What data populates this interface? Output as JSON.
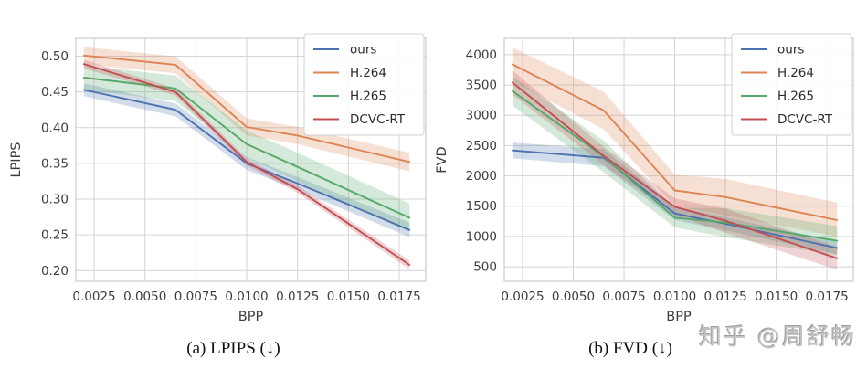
{
  "watermark": {
    "text": "知乎 @周舒畅",
    "color": "#c3c3c3"
  },
  "palette": {
    "ours": "#4c72b0",
    "h264": "#dd8452",
    "h265": "#55a868",
    "dcvc_rt": "#c44e52"
  },
  "chart_data": [
    {
      "type": "line",
      "caption": "(a) LPIPS (↓)",
      "title": "",
      "xlabel": "BPP",
      "ylabel": "LPIPS",
      "grid": true,
      "legend_position": "upper right",
      "x": [
        0.002,
        0.0065,
        0.01,
        0.0125,
        0.018
      ],
      "xlim": [
        0.0016,
        0.0188
      ],
      "ylim": [
        0.185,
        0.525
      ],
      "xticks": [
        0.0025,
        0.005,
        0.0075,
        0.01,
        0.0125,
        0.015,
        0.0175
      ],
      "xtick_labels": [
        "0.0025",
        "0.0050",
        "0.0075",
        "0.0100",
        "0.0125",
        "0.0150",
        "0.0175"
      ],
      "yticks": [
        0.2,
        0.25,
        0.3,
        0.35,
        0.4,
        0.45,
        0.5
      ],
      "ytick_labels": [
        "0.20",
        "0.25",
        "0.30",
        "0.35",
        "0.40",
        "0.45",
        "0.50"
      ],
      "series": [
        {
          "name": "ours",
          "color": "#4c72b0",
          "values": [
            0.453,
            0.425,
            0.35,
            0.322,
            0.257
          ],
          "band_lower": [
            0.444,
            0.416,
            0.341,
            0.313,
            0.247
          ],
          "band_upper": [
            0.462,
            0.434,
            0.359,
            0.331,
            0.267
          ]
        },
        {
          "name": "H.264",
          "color": "#dd8452",
          "values": [
            0.501,
            0.488,
            0.401,
            0.389,
            0.352
          ],
          "band_lower": [
            0.489,
            0.476,
            0.389,
            0.377,
            0.339
          ],
          "band_upper": [
            0.513,
            0.5,
            0.413,
            0.401,
            0.365
          ]
        },
        {
          "name": "H.265",
          "color": "#55a868",
          "values": [
            0.47,
            0.455,
            0.377,
            0.345,
            0.274
          ],
          "band_lower": [
            0.453,
            0.437,
            0.358,
            0.325,
            0.254
          ],
          "band_upper": [
            0.487,
            0.473,
            0.396,
            0.365,
            0.294
          ]
        },
        {
          "name": "DCVC-RT",
          "color": "#c44e52",
          "values": [
            0.489,
            0.45,
            0.352,
            0.314,
            0.208
          ],
          "band_lower": [
            0.483,
            0.445,
            0.347,
            0.309,
            0.202
          ],
          "band_upper": [
            0.495,
            0.455,
            0.357,
            0.319,
            0.214
          ]
        }
      ]
    },
    {
      "type": "line",
      "caption": "(b) FVD (↓)",
      "title": "",
      "xlabel": "BPP",
      "ylabel": "FVD",
      "grid": true,
      "legend_position": "upper right",
      "x": [
        0.002,
        0.0065,
        0.01,
        0.0125,
        0.018
      ],
      "xlim": [
        0.0016,
        0.0188
      ],
      "ylim": [
        260,
        4270
      ],
      "xticks": [
        0.0025,
        0.005,
        0.0075,
        0.01,
        0.0125,
        0.015,
        0.0175
      ],
      "xtick_labels": [
        "0.0025",
        "0.0050",
        "0.0075",
        "0.0100",
        "0.0125",
        "0.0150",
        "0.0175"
      ],
      "yticks": [
        500,
        1000,
        1500,
        2000,
        2500,
        3000,
        3500,
        4000
      ],
      "ytick_labels": [
        "500",
        "1000",
        "1500",
        "2000",
        "2500",
        "3000",
        "3500",
        "4000"
      ],
      "series": [
        {
          "name": "ours",
          "color": "#4c72b0",
          "values": [
            2420,
            2300,
            1380,
            1210,
            810
          ],
          "band_lower": [
            2290,
            2160,
            1270,
            1100,
            710
          ],
          "band_upper": [
            2550,
            2440,
            1490,
            1320,
            910
          ]
        },
        {
          "name": "H.264",
          "color": "#dd8452",
          "values": [
            3840,
            3080,
            1760,
            1650,
            1270
          ],
          "band_lower": [
            3560,
            2770,
            1500,
            1350,
            1000
          ],
          "band_upper": [
            4120,
            3390,
            2020,
            1950,
            1560
          ]
        },
        {
          "name": "H.265",
          "color": "#55a868",
          "values": [
            3400,
            2320,
            1310,
            1230,
            930
          ],
          "band_lower": [
            3160,
            2060,
            1150,
            990,
            690
          ],
          "band_upper": [
            3640,
            2580,
            1470,
            1470,
            1170
          ]
        },
        {
          "name": "DCVC-RT",
          "color": "#c44e52",
          "values": [
            3540,
            2330,
            1490,
            1260,
            640
          ],
          "band_lower": [
            3340,
            2180,
            1350,
            1060,
            450
          ],
          "band_upper": [
            3740,
            2480,
            1630,
            1460,
            830
          ]
        }
      ]
    }
  ]
}
